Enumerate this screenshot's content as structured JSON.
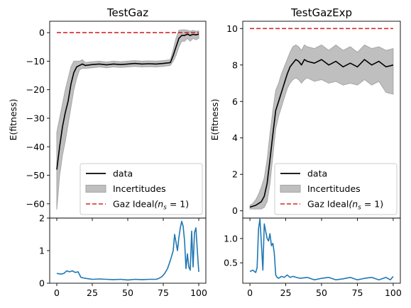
{
  "figure": {
    "colors": {
      "data_line": "#000000",
      "band_fill": "#bfbfbf",
      "band_edge": "#a6a6a6",
      "ideal_line": "#d62728",
      "residual_line": "#1f77b4"
    }
  },
  "chart_data": [
    {
      "id": "testgaz",
      "type": "line",
      "title": "TestGaz",
      "ylabel": "E(fitness)",
      "xlabel": "",
      "xlim": [
        -5,
        105
      ],
      "ylim": [
        -65,
        4
      ],
      "xticks": [
        0,
        25,
        50,
        75,
        100
      ],
      "yticks": [
        0,
        -10,
        -20,
        -30,
        -40,
        -50,
        -60
      ],
      "ytick_labels": [
        "0",
        "−10",
        "−20",
        "−30",
        "−40",
        "−50",
        "−60"
      ],
      "grid": false,
      "legend": {
        "placement": "lower-right",
        "entries": [
          {
            "label": "data",
            "style": "solid"
          },
          {
            "label": "Incertitudes",
            "style": "patch"
          },
          {
            "label": "Gaz Ideal",
            "suffix": "(n",
            "sub": "s",
            "tail": " = 1)",
            "style": "dashed"
          }
        ]
      },
      "series": [
        {
          "name": "data",
          "style": "solid",
          "x": [
            0,
            2,
            4,
            6,
            8,
            10,
            12,
            14,
            16,
            18,
            20,
            25,
            30,
            35,
            40,
            45,
            50,
            55,
            60,
            65,
            70,
            75,
            80,
            82,
            84,
            86,
            88,
            90,
            92,
            94,
            96,
            98,
            100
          ],
          "y": [
            -48,
            -40,
            -33,
            -28,
            -24,
            -18,
            -14,
            -12,
            -11.5,
            -11,
            -11.5,
            -11.2,
            -11,
            -11.3,
            -11,
            -11.2,
            -11,
            -10.8,
            -11,
            -10.9,
            -11,
            -10.8,
            -10.5,
            -8,
            -5,
            -2,
            -1,
            -1,
            -0.5,
            -1,
            -0.6,
            -0.8,
            -0.5
          ]
        },
        {
          "name": "Incertitudes",
          "style": "band",
          "x": [
            0,
            2,
            4,
            6,
            8,
            10,
            12,
            14,
            16,
            18,
            20,
            25,
            30,
            35,
            40,
            45,
            50,
            55,
            60,
            65,
            70,
            75,
            80,
            82,
            84,
            86,
            88,
            90,
            92,
            94,
            96,
            98,
            100
          ],
          "lower": [
            -62,
            -50,
            -43,
            -38,
            -32,
            -26,
            -20,
            -16,
            -13,
            -12.5,
            -12.5,
            -12.3,
            -12,
            -12.3,
            -12,
            -12.2,
            -12,
            -11.8,
            -12,
            -11.9,
            -12,
            -11.8,
            -11.5,
            -10,
            -8,
            -5,
            -3,
            -3,
            -2,
            -3,
            -2,
            -2.5,
            -2
          ]
        },
        {
          "name": "Incertitudes upper",
          "style": "band-upper",
          "x": [
            0,
            2,
            4,
            6,
            8,
            10,
            12,
            14,
            16,
            18,
            20,
            25,
            30,
            35,
            40,
            45,
            50,
            55,
            60,
            65,
            70,
            75,
            80,
            82,
            84,
            86,
            88,
            90,
            92,
            94,
            96,
            98,
            100
          ],
          "upper": [
            -35,
            -30,
            -25,
            -20,
            -16,
            -12,
            -10,
            -10,
            -10,
            -9.5,
            -10.5,
            -10.2,
            -10,
            -10.3,
            -10,
            -10.2,
            -10,
            -9.8,
            -10,
            -9.9,
            -10,
            -9.8,
            -9.5,
            -6,
            -2,
            0.8,
            1,
            1,
            0.8,
            0.5,
            0.8,
            0.5,
            0.6
          ]
        },
        {
          "name": "Gaz Ideal",
          "style": "dashed",
          "x": [
            0,
            100
          ],
          "y": [
            0,
            0
          ]
        }
      ]
    },
    {
      "id": "testgaz-residual",
      "type": "line",
      "title": "",
      "ylabel": "",
      "xlim": [
        -5,
        105
      ],
      "ylim": [
        0,
        2
      ],
      "xticks": [
        0,
        25,
        50,
        75,
        100
      ],
      "yticks": [
        0,
        1,
        2
      ],
      "ytick_labels": [
        "0",
        "1",
        "2"
      ],
      "grid": false,
      "series": [
        {
          "name": "",
          "style": "solid",
          "x": [
            0,
            3,
            5,
            7,
            9,
            11,
            13,
            15,
            17,
            20,
            25,
            30,
            35,
            40,
            45,
            50,
            55,
            60,
            65,
            70,
            72,
            74,
            76,
            78,
            80,
            82,
            83,
            85,
            86,
            87,
            88,
            89,
            90,
            91,
            92,
            93,
            94,
            95,
            96,
            97,
            98,
            99,
            100
          ],
          "y": [
            0.3,
            0.28,
            0.3,
            0.38,
            0.35,
            0.38,
            0.33,
            0.35,
            0.18,
            0.15,
            0.12,
            0.13,
            0.12,
            0.11,
            0.12,
            0.1,
            0.12,
            0.11,
            0.12,
            0.12,
            0.15,
            0.2,
            0.3,
            0.45,
            0.7,
            1.0,
            1.5,
            1.0,
            1.4,
            1.7,
            1.9,
            1.75,
            1.3,
            0.45,
            0.9,
            0.5,
            0.4,
            1.6,
            0.5,
            1.55,
            1.7,
            1.0,
            0.35
          ]
        }
      ]
    },
    {
      "id": "testgazexp",
      "type": "line",
      "title": "TestGazExp",
      "ylabel": "E(fitness)",
      "xlabel": "",
      "xlim": [
        -5,
        105
      ],
      "ylim": [
        -0.4,
        10.4
      ],
      "xticks": [
        0,
        25,
        50,
        75,
        100
      ],
      "yticks": [
        0,
        2,
        4,
        6,
        8,
        10
      ],
      "ytick_labels": [
        "0",
        "2",
        "4",
        "6",
        "8",
        "10"
      ],
      "grid": false,
      "legend": {
        "placement": "lower-right",
        "entries": [
          {
            "label": "data",
            "style": "solid"
          },
          {
            "label": "Incertitudes",
            "style": "patch"
          },
          {
            "label": "Gaz Ideal",
            "suffix": "(n",
            "sub": "s",
            "tail": " = 1)",
            "style": "dashed"
          }
        ]
      },
      "series": [
        {
          "name": "data",
          "style": "solid",
          "x": [
            0,
            2,
            4,
            6,
            8,
            10,
            12,
            14,
            16,
            18,
            20,
            22,
            24,
            26,
            28,
            30,
            32,
            34,
            36,
            38,
            40,
            45,
            50,
            55,
            60,
            65,
            70,
            75,
            80,
            85,
            90,
            95,
            100
          ],
          "y": [
            0.2,
            0.25,
            0.3,
            0.4,
            0.5,
            0.8,
            1.5,
            2.8,
            4.2,
            5.5,
            6.0,
            6.5,
            7.0,
            7.5,
            7.9,
            8.1,
            8.3,
            8.2,
            8.0,
            8.3,
            8.2,
            8.1,
            8.3,
            8.0,
            8.2,
            7.9,
            8.1,
            7.9,
            8.3,
            8.0,
            8.2,
            7.9,
            8.0
          ]
        },
        {
          "name": "Incertitudes",
          "style": "band",
          "x": [
            0,
            2,
            4,
            6,
            8,
            10,
            12,
            14,
            16,
            18,
            20,
            22,
            24,
            26,
            28,
            30,
            32,
            34,
            36,
            38,
            40,
            45,
            50,
            55,
            60,
            65,
            70,
            75,
            80,
            85,
            90,
            95,
            100
          ],
          "lower": [
            0.1,
            0.1,
            0.1,
            0.1,
            0.1,
            0.2,
            0.5,
            1.5,
            3.0,
            4.5,
            5.2,
            5.7,
            6.2,
            6.7,
            7.0,
            7.2,
            7.3,
            7.2,
            7.0,
            7.2,
            7.3,
            7.1,
            7.2,
            7.0,
            7.1,
            6.9,
            7.0,
            6.9,
            7.2,
            6.9,
            7.1,
            6.5,
            6.4
          ]
        },
        {
          "name": "Incertitudes upper",
          "style": "band-upper",
          "x": [
            0,
            2,
            4,
            6,
            8,
            10,
            12,
            14,
            16,
            18,
            20,
            22,
            24,
            26,
            28,
            30,
            32,
            34,
            36,
            38,
            40,
            45,
            50,
            55,
            60,
            65,
            70,
            75,
            80,
            85,
            90,
            95,
            100
          ],
          "upper": [
            0.3,
            0.4,
            0.6,
            0.9,
            1.3,
            1.8,
            2.8,
            4.2,
            5.5,
            6.6,
            7.0,
            7.5,
            7.9,
            8.3,
            8.7,
            9.0,
            9.1,
            9.0,
            8.8,
            9.1,
            9.0,
            8.9,
            9.1,
            8.8,
            9.1,
            8.8,
            9.0,
            8.7,
            9.1,
            8.9,
            9.0,
            8.8,
            8.9
          ]
        },
        {
          "name": "Gaz Ideal",
          "style": "dashed",
          "x": [
            0,
            100
          ],
          "y": [
            10,
            10
          ]
        }
      ]
    },
    {
      "id": "testgazexp-residual",
      "type": "line",
      "title": "",
      "ylabel": "",
      "xlim": [
        -5,
        105
      ],
      "ylim": [
        0.08,
        1.42
      ],
      "xticks": [
        0,
        25,
        50,
        75,
        100
      ],
      "yticks": [
        0.5,
        1.0
      ],
      "ytick_labels": [
        "0.5",
        "1.0"
      ],
      "grid": false,
      "series": [
        {
          "name": "",
          "style": "solid",
          "x": [
            0,
            2,
            4,
            5,
            6,
            7,
            8,
            9,
            10,
            11,
            12,
            13,
            14,
            15,
            16,
            17,
            18,
            19,
            20,
            22,
            24,
            26,
            28,
            30,
            35,
            40,
            45,
            50,
            55,
            60,
            65,
            70,
            75,
            80,
            85,
            90,
            95,
            98,
            100
          ],
          "y": [
            0.32,
            0.35,
            0.3,
            0.4,
            1.2,
            1.4,
            0.9,
            0.35,
            1.3,
            1.15,
            1.0,
            0.95,
            1.1,
            0.85,
            0.9,
            0.7,
            0.25,
            0.2,
            0.18,
            0.22,
            0.2,
            0.25,
            0.2,
            0.22,
            0.18,
            0.2,
            0.15,
            0.18,
            0.2,
            0.15,
            0.17,
            0.2,
            0.15,
            0.18,
            0.2,
            0.15,
            0.2,
            0.15,
            0.22
          ]
        }
      ]
    }
  ]
}
